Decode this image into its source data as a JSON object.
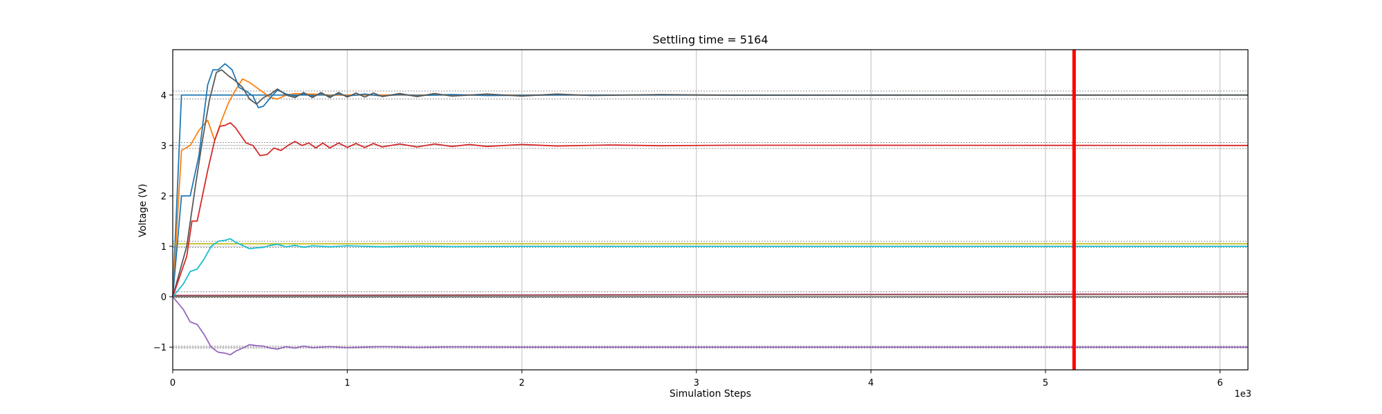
{
  "chart_data": {
    "type": "line",
    "title": "Settling time = 5164",
    "xlabel": "Simulation Steps",
    "ylabel": "Voltage (V)",
    "x_multiplier_label": "1e3",
    "xlim": [
      0,
      6160
    ],
    "ylim": [
      -1.45,
      4.9
    ],
    "x_ticks": [
      0,
      1000,
      2000,
      3000,
      4000,
      5000,
      6000
    ],
    "x_tick_labels": [
      "0",
      "1",
      "2",
      "3",
      "4",
      "5",
      "6"
    ],
    "y_ticks": [
      -1,
      0,
      1,
      2,
      3,
      4
    ],
    "y_tick_labels": [
      "−1",
      "0",
      "1",
      "2",
      "3",
      "4"
    ],
    "grid": true,
    "settling_time": 5164,
    "settling_color": "#ff0000",
    "tolerance_bands": [
      {
        "lo": 3.92,
        "hi": 4.08,
        "color": "#808080"
      },
      {
        "lo": 2.94,
        "hi": 3.06,
        "color": "#808080"
      },
      {
        "lo": 0.98,
        "hi": 1.1,
        "color": "#808080"
      },
      {
        "lo": -0.02,
        "hi": 0.1,
        "color": "#808080"
      },
      {
        "lo": -1.02,
        "hi": -0.98,
        "color": "#808080"
      }
    ],
    "series": [
      {
        "color": "#1f77b4",
        "points": [
          [
            0,
            0
          ],
          [
            50,
            4.0
          ],
          [
            6160,
            4.0
          ]
        ]
      },
      {
        "color": "#7f7f7f",
        "points": [
          [
            0,
            0
          ],
          [
            6160,
            0
          ]
        ]
      },
      {
        "color": "#bcbd22",
        "points": [
          [
            0,
            1.05
          ],
          [
            6160,
            1.05
          ]
        ]
      },
      {
        "color": "#e377c2",
        "points": [
          [
            0,
            0.03
          ],
          [
            6160,
            0.06
          ]
        ]
      },
      {
        "color": "#8c564b",
        "points": [
          [
            0,
            0.02
          ],
          [
            6160,
            0.05
          ]
        ]
      },
      {
        "color": "#ff7f0e",
        "points": [
          [
            0,
            0
          ],
          [
            50,
            2.9
          ],
          [
            100,
            3.0
          ],
          [
            150,
            3.3
          ],
          [
            200,
            3.5
          ],
          [
            240,
            3.1
          ],
          [
            280,
            3.5
          ],
          [
            320,
            3.85
          ],
          [
            360,
            4.1
          ],
          [
            400,
            4.32
          ],
          [
            440,
            4.25
          ],
          [
            480,
            4.15
          ],
          [
            520,
            4.05
          ],
          [
            560,
            3.95
          ],
          [
            600,
            3.92
          ],
          [
            650,
            4.0
          ],
          [
            700,
            4.03
          ],
          [
            750,
            4.02
          ],
          [
            800,
            4.02
          ],
          [
            900,
            4.0
          ],
          [
            6160,
            4.0
          ]
        ]
      },
      {
        "color": "#1f77b4",
        "points": [
          [
            0,
            0
          ],
          [
            50,
            2.0
          ],
          [
            100,
            2.0
          ],
          [
            150,
            2.8
          ],
          [
            200,
            4.2
          ],
          [
            230,
            4.5
          ],
          [
            260,
            4.5
          ],
          [
            300,
            4.62
          ],
          [
            340,
            4.5
          ],
          [
            380,
            4.15
          ],
          [
            420,
            4.08
          ],
          [
            460,
            3.98
          ],
          [
            490,
            3.75
          ],
          [
            520,
            3.78
          ],
          [
            560,
            3.95
          ],
          [
            600,
            4.1
          ],
          [
            650,
            4.02
          ],
          [
            700,
            3.98
          ],
          [
            750,
            4.02
          ],
          [
            800,
            3.98
          ],
          [
            850,
            4.02
          ],
          [
            900,
            3.98
          ],
          [
            950,
            4.02
          ],
          [
            1000,
            3.98
          ],
          [
            1100,
            4.02
          ],
          [
            1200,
            3.98
          ],
          [
            1300,
            4.01
          ],
          [
            1400,
            3.99
          ],
          [
            1600,
            4.01
          ],
          [
            1800,
            3.99
          ],
          [
            2200,
            4.0
          ],
          [
            6160,
            4.0
          ]
        ]
      },
      {
        "color": "#595959",
        "points": [
          [
            0,
            0
          ],
          [
            80,
            1.0
          ],
          [
            130,
            2.2
          ],
          [
            170,
            3.1
          ],
          [
            210,
            3.9
          ],
          [
            250,
            4.45
          ],
          [
            280,
            4.5
          ],
          [
            320,
            4.38
          ],
          [
            360,
            4.28
          ],
          [
            400,
            4.15
          ],
          [
            440,
            3.92
          ],
          [
            480,
            3.82
          ],
          [
            520,
            3.95
          ],
          [
            560,
            4.02
          ],
          [
            600,
            4.12
          ],
          [
            650,
            4.0
          ],
          [
            700,
            3.95
          ],
          [
            750,
            4.05
          ],
          [
            800,
            3.95
          ],
          [
            850,
            4.05
          ],
          [
            900,
            3.95
          ],
          [
            950,
            4.05
          ],
          [
            1000,
            3.96
          ],
          [
            1050,
            4.04
          ],
          [
            1100,
            3.96
          ],
          [
            1150,
            4.04
          ],
          [
            1200,
            3.97
          ],
          [
            1300,
            4.03
          ],
          [
            1400,
            3.97
          ],
          [
            1500,
            4.03
          ],
          [
            1600,
            3.98
          ],
          [
            1800,
            4.02
          ],
          [
            2000,
            3.98
          ],
          [
            2200,
            4.02
          ],
          [
            2400,
            3.99
          ],
          [
            2800,
            4.01
          ],
          [
            3200,
            3.995
          ],
          [
            6160,
            4.0
          ]
        ]
      },
      {
        "color": "#d62728",
        "points": [
          [
            0,
            0
          ],
          [
            80,
            0.8
          ],
          [
            110,
            1.5
          ],
          [
            140,
            1.5
          ],
          [
            170,
            2.0
          ],
          [
            200,
            2.5
          ],
          [
            240,
            3.1
          ],
          [
            270,
            3.38
          ],
          [
            300,
            3.4
          ],
          [
            330,
            3.45
          ],
          [
            360,
            3.35
          ],
          [
            390,
            3.2
          ],
          [
            420,
            3.05
          ],
          [
            460,
            3.0
          ],
          [
            500,
            2.8
          ],
          [
            540,
            2.82
          ],
          [
            580,
            2.95
          ],
          [
            620,
            2.9
          ],
          [
            660,
            3.0
          ],
          [
            700,
            3.08
          ],
          [
            740,
            3.0
          ],
          [
            780,
            3.05
          ],
          [
            820,
            2.95
          ],
          [
            860,
            3.05
          ],
          [
            900,
            2.95
          ],
          [
            950,
            3.05
          ],
          [
            1000,
            2.96
          ],
          [
            1050,
            3.04
          ],
          [
            1100,
            2.96
          ],
          [
            1150,
            3.04
          ],
          [
            1200,
            2.97
          ],
          [
            1300,
            3.03
          ],
          [
            1400,
            2.97
          ],
          [
            1500,
            3.03
          ],
          [
            1600,
            2.98
          ],
          [
            1700,
            3.02
          ],
          [
            1800,
            2.98
          ],
          [
            2000,
            3.02
          ],
          [
            2200,
            2.99
          ],
          [
            2500,
            3.01
          ],
          [
            2800,
            2.995
          ],
          [
            3200,
            3.005
          ],
          [
            6160,
            3.0
          ]
        ]
      },
      {
        "color": "#17becf",
        "points": [
          [
            0,
            0
          ],
          [
            60,
            0.25
          ],
          [
            100,
            0.5
          ],
          [
            140,
            0.55
          ],
          [
            180,
            0.75
          ],
          [
            220,
            1.0
          ],
          [
            260,
            1.1
          ],
          [
            300,
            1.12
          ],
          [
            330,
            1.15
          ],
          [
            360,
            1.08
          ],
          [
            400,
            1.02
          ],
          [
            440,
            0.95
          ],
          [
            480,
            0.97
          ],
          [
            520,
            0.98
          ],
          [
            560,
            1.02
          ],
          [
            600,
            1.04
          ],
          [
            650,
            0.99
          ],
          [
            700,
            1.02
          ],
          [
            750,
            0.98
          ],
          [
            800,
            1.01
          ],
          [
            900,
            0.99
          ],
          [
            1000,
            1.01
          ],
          [
            1200,
            0.99
          ],
          [
            1400,
            1.005
          ],
          [
            1600,
            0.995
          ],
          [
            2000,
            1.0
          ],
          [
            6160,
            1.0
          ]
        ]
      },
      {
        "color": "#9467bd",
        "points": [
          [
            0,
            0
          ],
          [
            60,
            -0.25
          ],
          [
            100,
            -0.5
          ],
          [
            140,
            -0.55
          ],
          [
            180,
            -0.75
          ],
          [
            220,
            -1.0
          ],
          [
            260,
            -1.1
          ],
          [
            300,
            -1.12
          ],
          [
            330,
            -1.15
          ],
          [
            360,
            -1.08
          ],
          [
            400,
            -1.02
          ],
          [
            440,
            -0.95
          ],
          [
            480,
            -0.97
          ],
          [
            520,
            -0.98
          ],
          [
            560,
            -1.02
          ],
          [
            600,
            -1.04
          ],
          [
            650,
            -0.99
          ],
          [
            700,
            -1.02
          ],
          [
            750,
            -0.98
          ],
          [
            800,
            -1.01
          ],
          [
            900,
            -0.99
          ],
          [
            1000,
            -1.01
          ],
          [
            1200,
            -0.99
          ],
          [
            1400,
            -1.005
          ],
          [
            1600,
            -0.995
          ],
          [
            2000,
            -1.0
          ],
          [
            6160,
            -1.0
          ]
        ]
      }
    ]
  }
}
